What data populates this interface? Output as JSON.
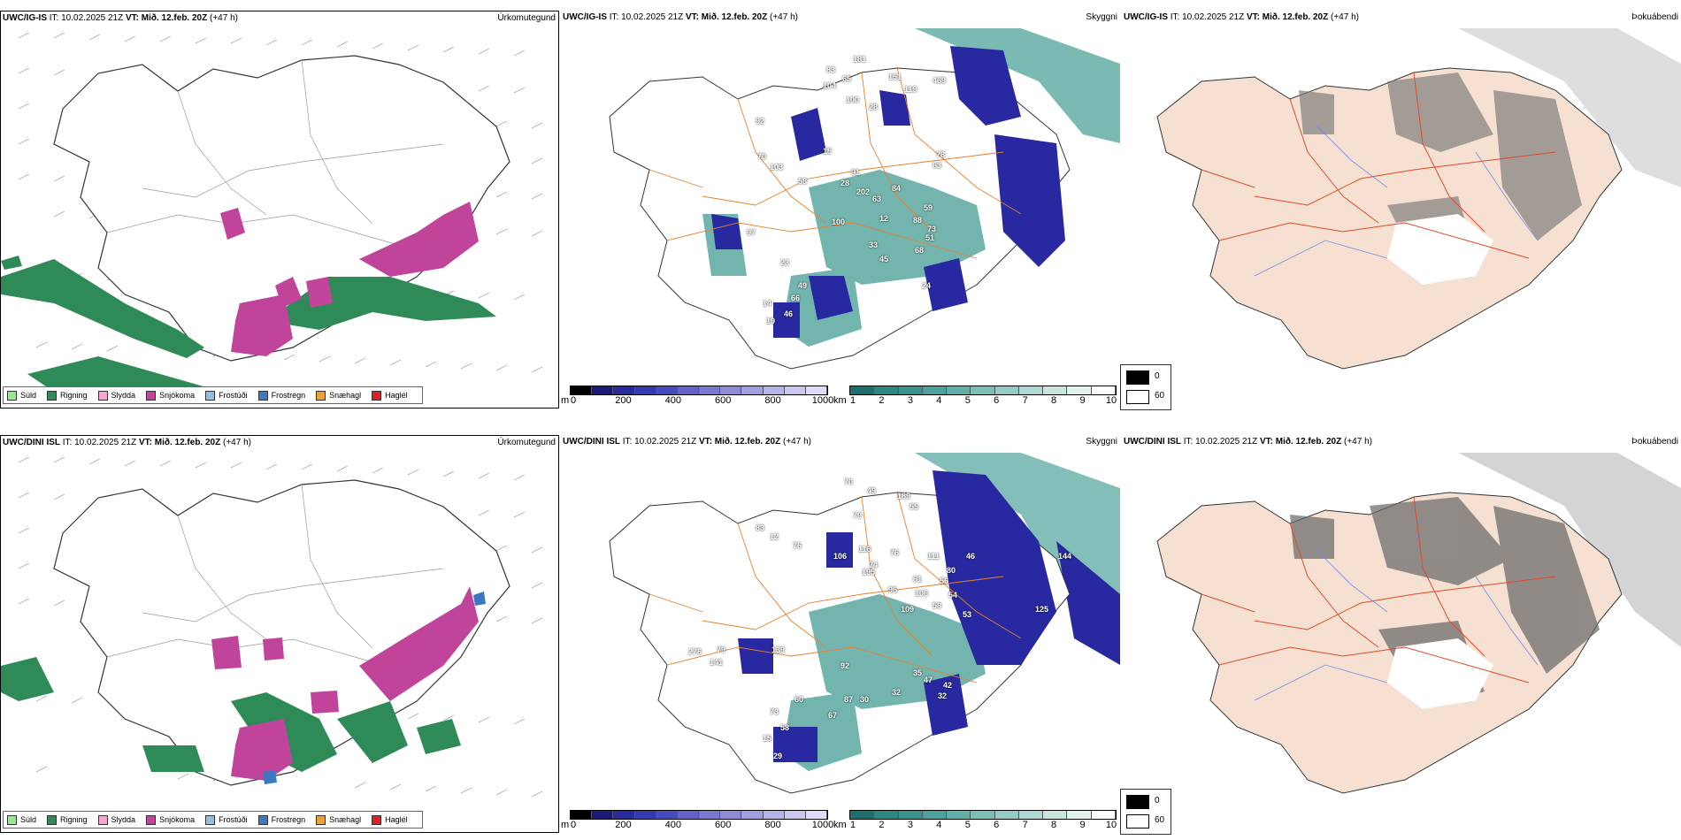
{
  "rows": [
    {
      "model": "UWC/IG-IS",
      "it_label": "IT:",
      "it_value": "10.02.2025 21Z",
      "vt_label": "VT:",
      "vt_value": "Mið. 12.feb. 20Z",
      "lead": "(+47 h)",
      "cloud_labels": [
        "181",
        "83",
        "65",
        "151",
        "469",
        "104",
        "119",
        "100",
        "28",
        "92",
        "70",
        "103",
        "15",
        "78",
        "63",
        "91",
        "58",
        "28",
        "202",
        "84",
        "63",
        "59",
        "88",
        "73",
        "97",
        "100",
        "12",
        "51",
        "33",
        "68",
        "45",
        "23",
        "49",
        "24",
        "66",
        "46",
        "19",
        "14"
      ]
    },
    {
      "model": "UWC/DINI ISL",
      "it_label": "IT:",
      "it_value": "10.02.2025 21Z",
      "vt_label": "VT:",
      "vt_value": "Mið. 12.feb. 20Z",
      "lead": "(+47 h)",
      "cloud_labels": [
        "70",
        "49",
        "189",
        "55",
        "79",
        "83",
        "12",
        "76",
        "116",
        "106",
        "76",
        "111",
        "46",
        "144",
        "74",
        "195",
        "80",
        "56",
        "61",
        "96",
        "106",
        "54",
        "58",
        "109",
        "53",
        "125",
        "276",
        "79",
        "139",
        "141",
        "92",
        "35",
        "47",
        "42",
        "32",
        "32",
        "60",
        "87",
        "30",
        "73",
        "67",
        "15",
        "29",
        "58"
      ]
    }
  ],
  "panel_titles": {
    "precip": "Úrkomutegund",
    "cloud": "Skyggni",
    "fog": "Þokuábendi"
  },
  "precip_legend": [
    {
      "label": "Súld",
      "color": "#90ee90"
    },
    {
      "label": "Rigning",
      "color": "#2e8b57"
    },
    {
      "label": "Slydda",
      "color": "#f4a6d0"
    },
    {
      "label": "Snjókoma",
      "color": "#c0449a"
    },
    {
      "label": "Frostúði",
      "color": "#8fbce8"
    },
    {
      "label": "Frostregn",
      "color": "#3a78c2"
    },
    {
      "label": "Snæhagl",
      "color": "#f0a030"
    },
    {
      "label": "Haglél",
      "color": "#e02020"
    }
  ],
  "cbar_m": {
    "unit": "m",
    "ticks": [
      "0",
      "200",
      "400",
      "600",
      "800",
      "1000"
    ],
    "colors": [
      "#000000",
      "#1a1a7a",
      "#2a2a9a",
      "#3838b0",
      "#4a4ac0",
      "#6262c8",
      "#7878d0",
      "#8c8cd8",
      "#a0a0e0",
      "#b4b4e8",
      "#c8c8f0",
      "#dcdcf8"
    ]
  },
  "cbar_km": {
    "unit": "km",
    "ticks": [
      "1",
      "2",
      "3",
      "4",
      "5",
      "6",
      "7",
      "8",
      "9",
      "10"
    ],
    "colors": [
      "#1f6f6a",
      "#2e8680",
      "#3a948d",
      "#4aa39b",
      "#62b1a9",
      "#7cbfb7",
      "#96cbc4",
      "#b0d8d2",
      "#cae5e0",
      "#e4f2ef",
      "#ffffff"
    ]
  },
  "fog_box": {
    "top": "0",
    "bottom": "60"
  },
  "colors": {
    "rain": "#2e8b57",
    "snow": "#c0449a",
    "cloud_low": "#2828a0",
    "cloud_teal": "#5aa8a0",
    "roads": "#e8802a",
    "land_fog": "#f5e0d2",
    "fog_roads": "#e04a2a",
    "fog_rivers": "#7a8ae8"
  }
}
